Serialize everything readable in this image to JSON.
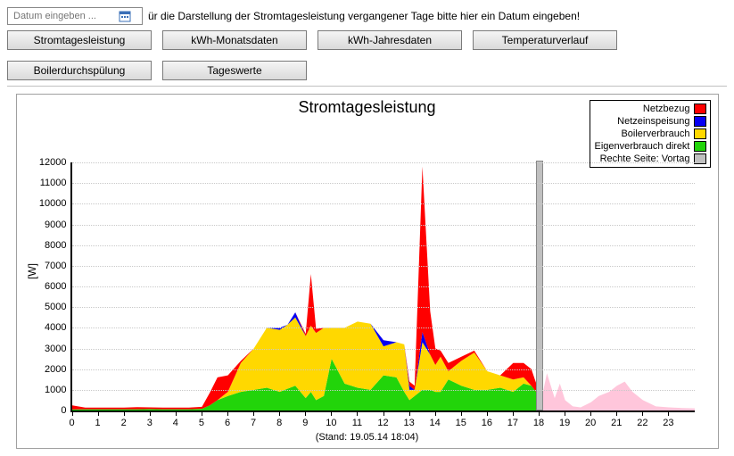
{
  "topbar": {
    "date_placeholder": "Datum eingeben ...",
    "hint": "ür die Darstellung der Stromtagesleistung vergangener Tage bitte hier ein Datum eingeben!"
  },
  "tabs": [
    {
      "label": "Stromtagesleistung"
    },
    {
      "label": "kWh-Monatsdaten"
    },
    {
      "label": "kWh-Jahresdaten"
    },
    {
      "label": "Temperaturverlauf"
    },
    {
      "label": "Boilerdurchspülung"
    },
    {
      "label": "Tageswerte"
    }
  ],
  "chart": {
    "type": "stacked-area",
    "title": "Stromtagesleistung",
    "stand_label": "(Stand: 19.05.14 18:04)",
    "ylabel": "[W]",
    "x": {
      "min": 0,
      "max": 24,
      "tick_step": 1,
      "labels": [
        "0",
        "1",
        "2",
        "3",
        "4",
        "5",
        "6",
        "7",
        "8",
        "9",
        "10",
        "11",
        "12",
        "13",
        "14",
        "15",
        "16",
        "17",
        "18",
        "19",
        "20",
        "21",
        "22",
        "23"
      ]
    },
    "y": {
      "min": 0,
      "max": 12000,
      "tick_step": 1000,
      "ticks": [
        0,
        1000,
        2000,
        3000,
        4000,
        5000,
        6000,
        7000,
        8000,
        9000,
        10000,
        11000,
        12000
      ]
    },
    "colors": {
      "netzbezug": "#ff0000",
      "netzeinspeisung": "#0700f3",
      "boilerverbrauch": "#ffd800",
      "eigenverbrauch": "#22d40a",
      "vortag": "#ffc6db",
      "vortag_box": "#c0c0c0",
      "plot_bg": "#ffffff",
      "grid": "#c9c9c9",
      "title_fontsize": 18,
      "axis_fontsize": 11
    },
    "legend": [
      {
        "label": "Netzbezug",
        "key": "netzbezug"
      },
      {
        "label": "Netzeinspeisung",
        "key": "netzeinspeisung"
      },
      {
        "label": "Boilerverbrauch",
        "key": "boilerverbrauch"
      },
      {
        "label": "Eigenverbrauch direkt",
        "key": "eigenverbrauch"
      },
      {
        "label": "Rechte Seite: Vortag",
        "key": "vortag_box"
      }
    ],
    "vortag_marker_x": 18,
    "series": {
      "x": [
        0,
        0.5,
        1,
        1.5,
        2,
        2.5,
        3,
        3.5,
        4,
        4.5,
        5,
        5.3,
        5.6,
        6,
        6.5,
        7,
        7.5,
        8,
        8.3,
        8.6,
        9,
        9.2,
        9.4,
        9.7,
        10,
        10.5,
        11,
        11.5,
        12,
        12.5,
        12.8,
        13,
        13.2,
        13.5,
        13.8,
        14,
        14.2,
        14.5,
        15,
        15.5,
        16,
        16.5,
        17,
        17.4,
        17.7,
        18
      ],
      "eigenverbrauch": [
        50,
        60,
        60,
        60,
        60,
        60,
        70,
        60,
        60,
        60,
        80,
        250,
        500,
        700,
        900,
        1000,
        1100,
        900,
        1050,
        1200,
        600,
        900,
        500,
        700,
        2500,
        1300,
        1100,
        1000,
        1700,
        1600,
        900,
        500,
        700,
        1000,
        1000,
        900,
        900,
        1500,
        1200,
        1000,
        1000,
        1100,
        900,
        1300,
        1200,
        700
      ],
      "boilerverbrauch": [
        0,
        0,
        0,
        0,
        0,
        0,
        0,
        0,
        0,
        0,
        0,
        0,
        0,
        200,
        1400,
        2000,
        2900,
        3000,
        3100,
        3300,
        3000,
        3200,
        3250,
        3300,
        1500,
        2700,
        3200,
        3200,
        1400,
        1700,
        2300,
        500,
        300,
        2300,
        1700,
        1300,
        1700,
        400,
        1200,
        1800,
        900,
        600,
        600,
        300,
        0,
        0
      ],
      "netzeinspeisung": [
        0,
        0,
        0,
        0,
        0,
        0,
        0,
        0,
        0,
        0,
        0,
        0,
        0,
        0,
        0,
        0,
        0,
        100,
        0,
        250,
        0,
        0,
        0,
        0,
        0,
        0,
        0,
        0,
        300,
        0,
        0,
        200,
        0,
        500,
        0,
        0,
        0,
        0,
        0,
        0,
        0,
        0,
        0,
        0,
        0,
        0
      ],
      "netzbezug": [
        200,
        80,
        80,
        80,
        80,
        100,
        80,
        80,
        80,
        80,
        100,
        600,
        1100,
        800,
        100,
        0,
        0,
        0,
        0,
        0,
        100,
        2500,
        200,
        0,
        0,
        0,
        0,
        0,
        0,
        0,
        0,
        200,
        200,
        8000,
        2100,
        800,
        300,
        400,
        200,
        100,
        0,
        0,
        800,
        700,
        800,
        200
      ]
    },
    "vortag": {
      "x": [
        18,
        18.3,
        18.6,
        18.8,
        19,
        19.3,
        19.6,
        20,
        20.3,
        20.7,
        21,
        21.3,
        21.6,
        22,
        22.5,
        23,
        23.5,
        24
      ],
      "y": [
        0,
        1800,
        600,
        1300,
        500,
        200,
        150,
        400,
        700,
        900,
        1200,
        1400,
        900,
        500,
        200,
        150,
        120,
        100
      ]
    }
  }
}
